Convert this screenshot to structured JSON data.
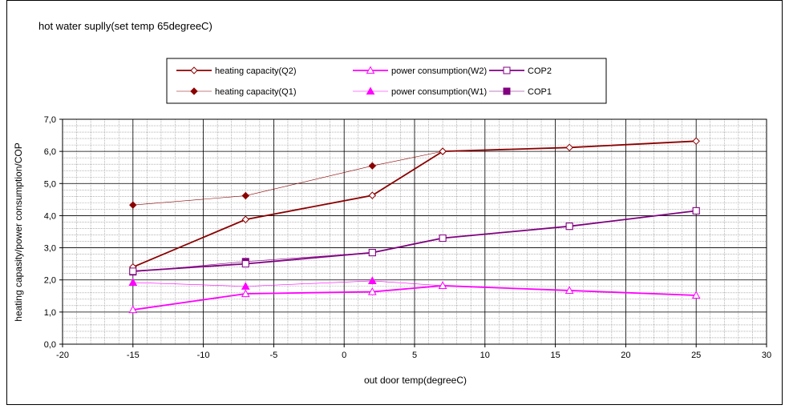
{
  "chart_data": {
    "type": "line",
    "title": "hot water suplly(set temp 65degreeC)",
    "xlabel": "out door temp(degreeC)",
    "ylabel": "heating capasity/power consumption/COP",
    "xlim": [
      -20,
      30
    ],
    "ylim": [
      0,
      7
    ],
    "x_ticks": [
      -20,
      -15,
      -10,
      -5,
      0,
      5,
      10,
      15,
      20,
      25,
      30
    ],
    "x_tick_labels": [
      "-20",
      "-15",
      "-10",
      "-5",
      "0",
      "5",
      "10",
      "15",
      "20",
      "25",
      "30"
    ],
    "y_ticks": [
      0,
      1,
      2,
      3,
      4,
      5,
      6,
      7
    ],
    "y_tick_labels": [
      "0,0",
      "1,0",
      "2,0",
      "3,0",
      "4,0",
      "5,0",
      "6,0",
      "7,0"
    ],
    "grid": true,
    "legend_position": "top",
    "series": [
      {
        "name": "heating capacity(Q2)",
        "color": "#8B0000",
        "marker": "diamond-open",
        "line": "thick",
        "points": [
          [
            -15,
            2.4
          ],
          [
            -7,
            3.88
          ],
          [
            2,
            4.63
          ],
          [
            7,
            6.0
          ],
          [
            16,
            6.12
          ],
          [
            25,
            6.32
          ]
        ]
      },
      {
        "name": "heating capacity(Q1)",
        "color": "#8B0000",
        "marker": "diamond-filled",
        "line": "thin",
        "points": [
          [
            -15,
            4.33
          ],
          [
            -7,
            4.62
          ],
          [
            2,
            5.55
          ],
          [
            7,
            6.0
          ]
        ]
      },
      {
        "name": "power consumption(W2)",
        "color": "#FF00FF",
        "marker": "triangle-open",
        "line": "thick",
        "points": [
          [
            -15,
            1.07
          ],
          [
            -7,
            1.57
          ],
          [
            2,
            1.63
          ],
          [
            7,
            1.82
          ],
          [
            16,
            1.67
          ],
          [
            25,
            1.52
          ]
        ]
      },
      {
        "name": "power consumption(W1)",
        "color": "#FF00FF",
        "marker": "triangle-filled",
        "line": "thin",
        "points": [
          [
            -15,
            1.92
          ],
          [
            -7,
            1.8
          ],
          [
            2,
            1.97
          ],
          [
            7,
            1.82
          ]
        ]
      },
      {
        "name": "COP2",
        "color": "#800080",
        "marker": "square-open",
        "line": "thick",
        "points": [
          [
            -15,
            2.27
          ],
          [
            -7,
            2.5
          ],
          [
            2,
            2.85
          ],
          [
            7,
            3.3
          ],
          [
            16,
            3.67
          ],
          [
            25,
            4.15
          ]
        ]
      },
      {
        "name": "COP1",
        "color": "#800080",
        "marker": "square-filled",
        "line": "thin",
        "points": [
          [
            -15,
            2.25
          ],
          [
            -7,
            2.57
          ],
          [
            2,
            2.85
          ],
          [
            7,
            3.3
          ],
          [
            16,
            3.67
          ],
          [
            25,
            4.15
          ]
        ]
      }
    ],
    "legend_order": [
      "heating capacity(Q2)",
      "power consumption(W2)",
      "COP2",
      "heating capacity(Q1)",
      "power consumption(W1)",
      "COP1"
    ]
  }
}
